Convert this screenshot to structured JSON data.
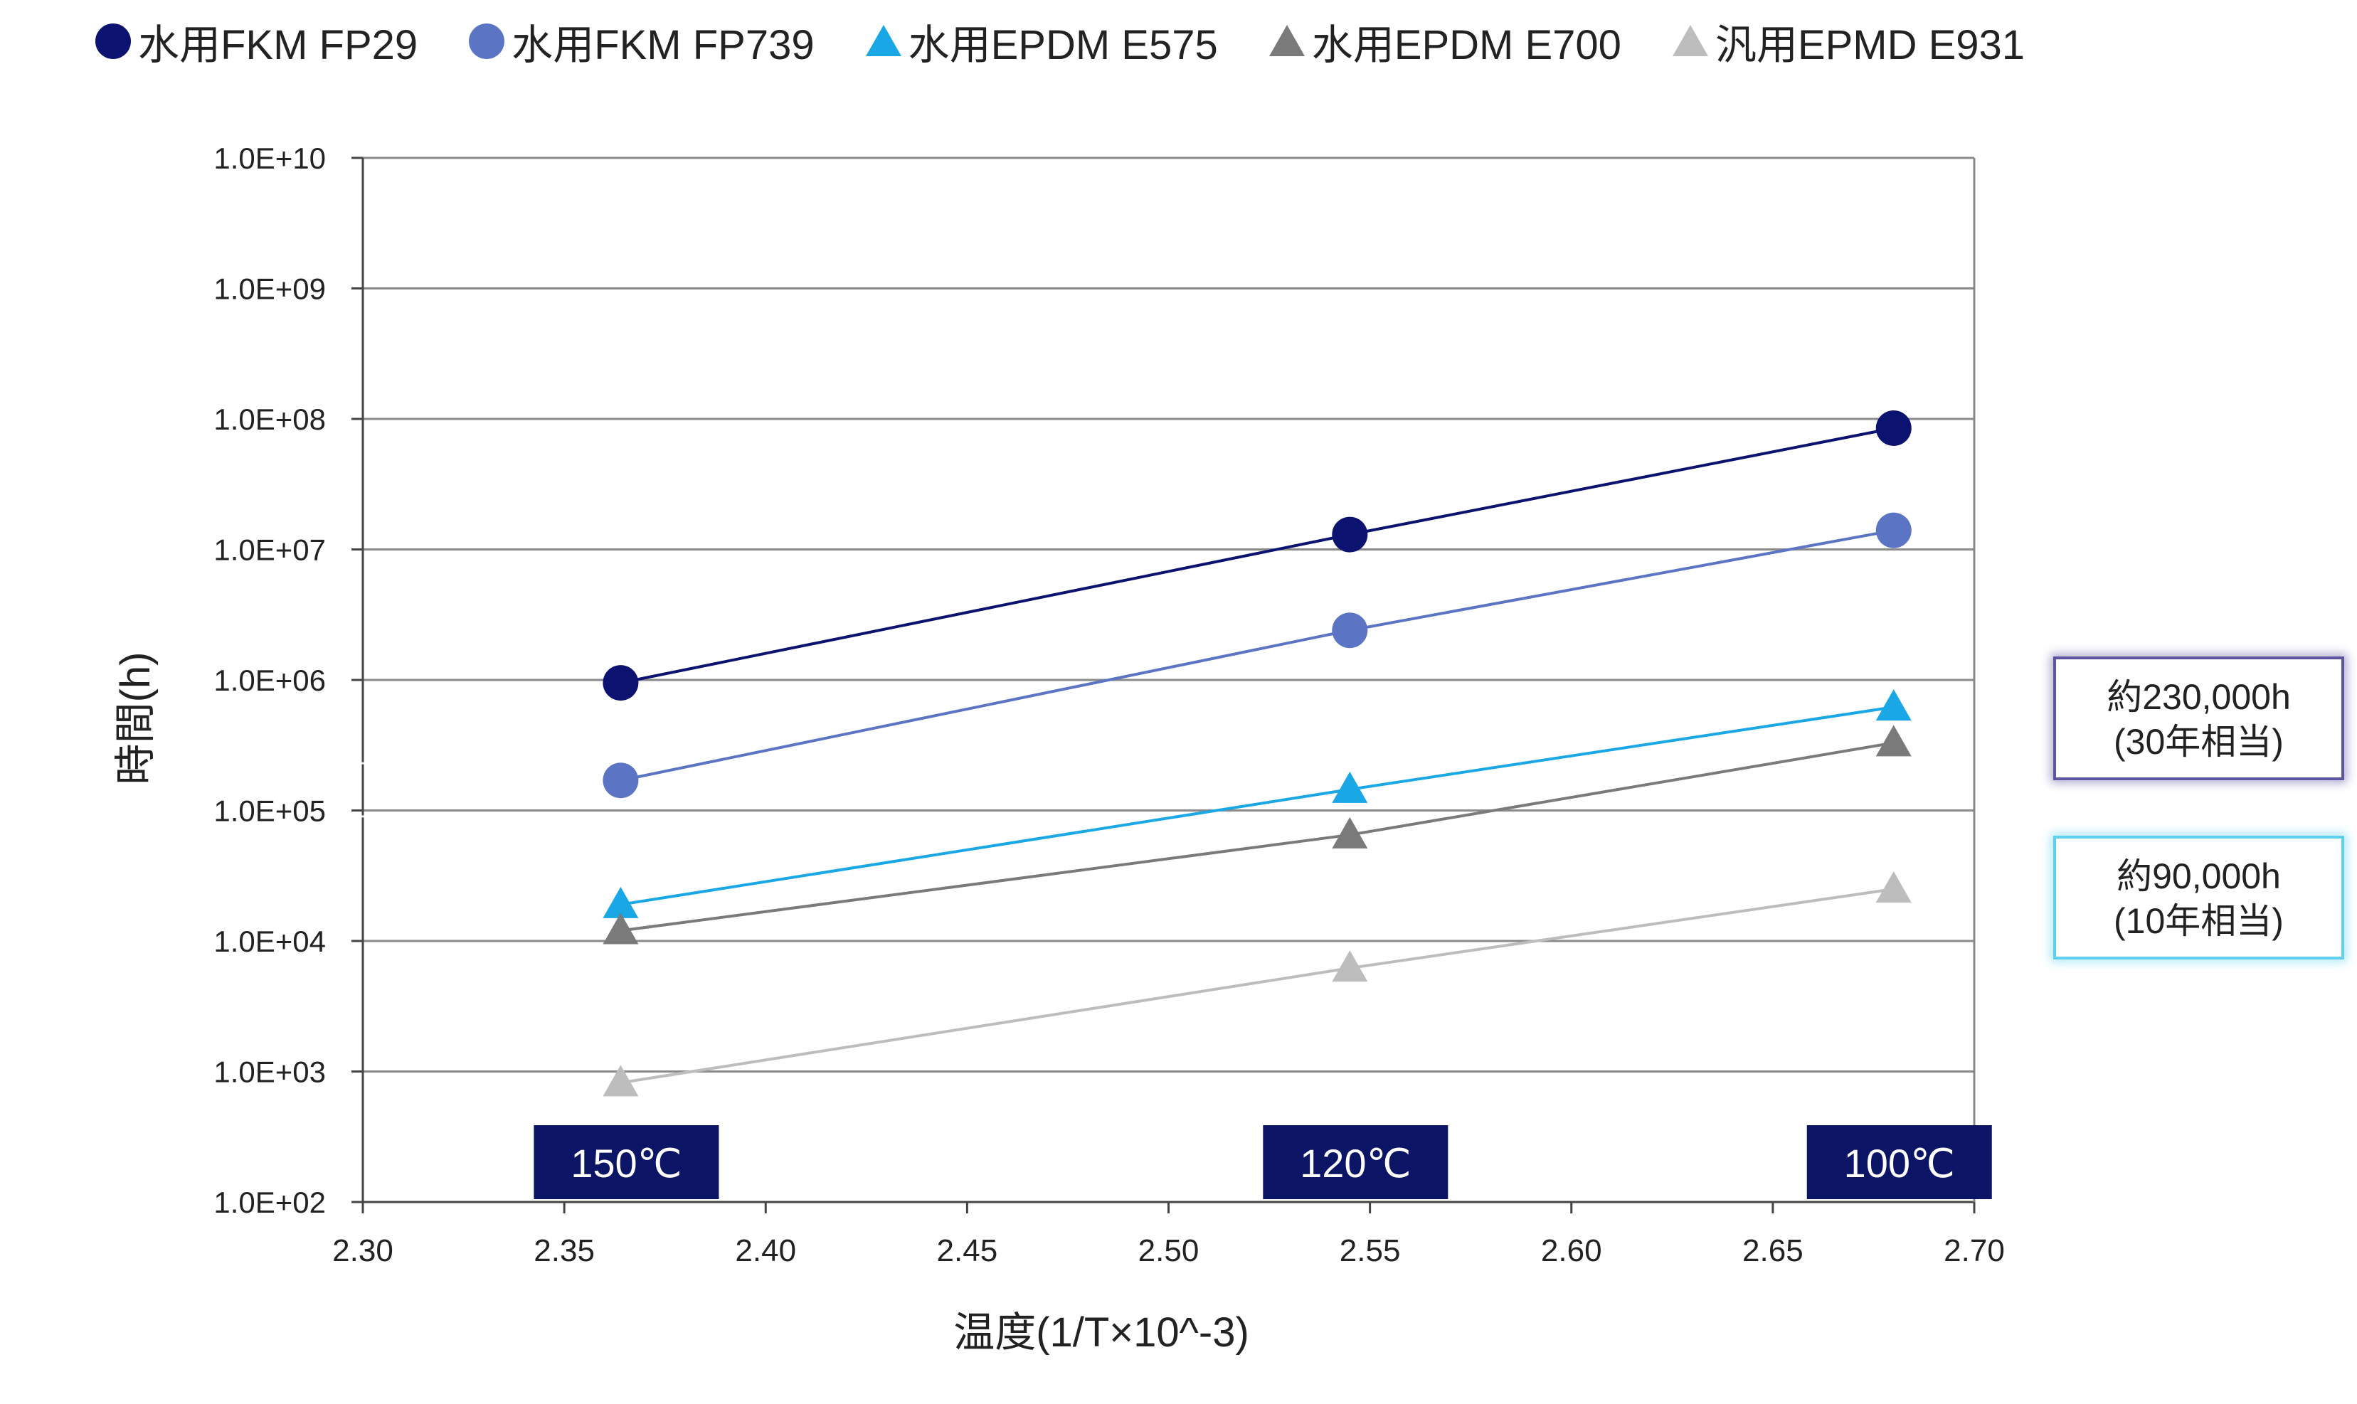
{
  "chart_data": {
    "type": "scatter",
    "scale_y": "log",
    "xlabel": "温度(1/T×10^-3)",
    "ylabel": "時間(h)",
    "xlim": [
      2.3,
      2.7
    ],
    "ylim": [
      100,
      10000000000
    ],
    "grid": true,
    "legend_position": "top",
    "x_ticks": [
      "2.30",
      "2.35",
      "2.40",
      "2.45",
      "2.50",
      "2.55",
      "2.60",
      "2.65",
      "2.70"
    ],
    "y_ticks": [
      "1.0E+02",
      "1.0E+03",
      "1.0E+04",
      "1.0E+05",
      "1.0E+06",
      "1.0E+07",
      "1.0E+08",
      "1.0E+09",
      "1.0E+10"
    ],
    "series": [
      {
        "name": "水用FKM FP29",
        "marker": "circle",
        "color": "#0c1270",
        "x": [
          2.364,
          2.545,
          2.68
        ],
        "y": [
          950000,
          13000000,
          85000000
        ]
      },
      {
        "name": "水用FKM FP739",
        "marker": "circle",
        "color": "#5b75c4",
        "x": [
          2.364,
          2.545,
          2.68
        ],
        "y": [
          170000,
          2400000,
          14000000
        ]
      },
      {
        "name": "水用EPDM E575",
        "marker": "triangle",
        "color": "#1aa7e5",
        "x": [
          2.364,
          2.545,
          2.68
        ],
        "y": [
          19000,
          145000,
          620000
        ]
      },
      {
        "name": "水用EPDM E700",
        "marker": "triangle",
        "color": "#7a7a7a",
        "x": [
          2.364,
          2.545,
          2.68
        ],
        "y": [
          12000,
          65000,
          330000
        ]
      },
      {
        "name": "汎用EPMD E931",
        "marker": "triangle",
        "color": "#bdbdbd",
        "x": [
          2.364,
          2.545,
          2.68
        ],
        "y": [
          820,
          6200,
          25000
        ]
      }
    ],
    "reference_lines": [
      {
        "value": 230000,
        "label_1": "約230,000h",
        "label_2": "(30年相当)",
        "color": "#5a559e"
      },
      {
        "value": 90000,
        "label_1": "約90,000h",
        "label_2": "(10年相当)",
        "color": "#5fd1ef"
      }
    ],
    "temperature_labels": [
      {
        "x": 2.364,
        "text": "150℃"
      },
      {
        "x": 2.545,
        "text": "120℃"
      },
      {
        "x": 2.68,
        "text": "100℃"
      }
    ]
  }
}
